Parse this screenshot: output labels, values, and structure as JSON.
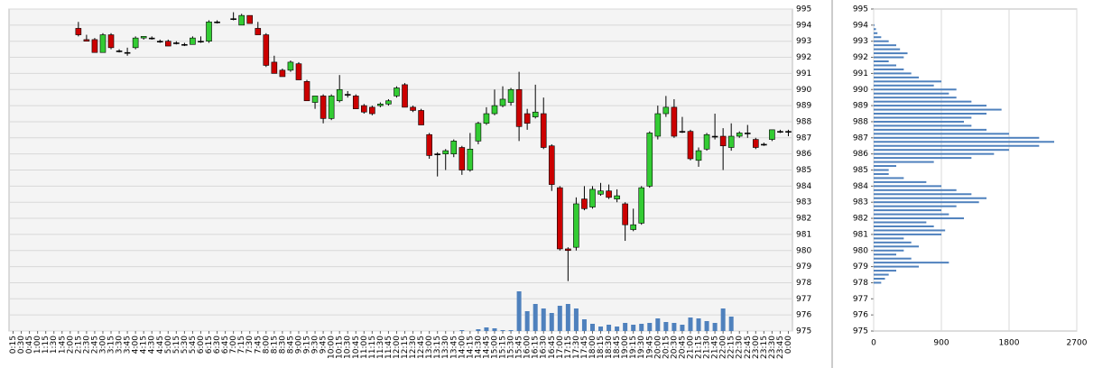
{
  "chart_data": [
    {
      "type": "candlestick",
      "x": [
        "0:15",
        "0:30",
        "0:45",
        "1:00",
        "1:15",
        "1:30",
        "1:45",
        "2:00",
        "2:15",
        "2:30",
        "2:45",
        "3:00",
        "3:15",
        "3:30",
        "3:45",
        "4:00",
        "4:15",
        "4:30",
        "4:45",
        "5:00",
        "5:15",
        "5:30",
        "5:45",
        "6:00",
        "6:15",
        "6:30",
        "6:45",
        "7:00",
        "7:15",
        "7:30",
        "7:45",
        "8:00",
        "8:15",
        "8:30",
        "8:45",
        "9:00",
        "9:15",
        "9:30",
        "9:45",
        "10:00",
        "10:15",
        "10:30",
        "10:45",
        "11:00",
        "11:15",
        "11:30",
        "11:45",
        "12:00",
        "12:15",
        "12:30",
        "12:45",
        "13:00",
        "13:15",
        "13:30",
        "13:45",
        "14:00",
        "14:15",
        "14:30",
        "14:45",
        "15:00",
        "15:15",
        "15:30",
        "15:45",
        "16:00",
        "16:15",
        "16:30",
        "16:45",
        "17:00",
        "17:15",
        "17:30",
        "17:45",
        "18:00",
        "18:15",
        "18:30",
        "18:45",
        "19:00",
        "19:15",
        "19:30",
        "19:45",
        "20:00",
        "20:15",
        "20:30",
        "20:45",
        "21:00",
        "21:15",
        "21:30",
        "21:45",
        "22:00",
        "22:15",
        "22:30",
        "22:45",
        "23:00",
        "23:15",
        "23:30",
        "23:45",
        "0:00"
      ],
      "open": [
        null,
        null,
        null,
        null,
        null,
        null,
        null,
        null,
        993.8,
        993.1,
        993.1,
        992.3,
        993.4,
        992.4,
        992.3,
        992.6,
        993.2,
        993.2,
        993.0,
        993.0,
        992.9,
        992.8,
        992.8,
        993.0,
        993.0,
        994.2,
        null,
        994.4,
        994.0,
        994.6,
        993.8,
        993.4,
        991.7,
        991.2,
        991.2,
        991.6,
        990.5,
        989.2,
        989.6,
        988.2,
        989.3,
        989.7,
        989.6,
        989.0,
        988.9,
        989.0,
        989.1,
        989.6,
        990.3,
        988.9,
        988.7,
        987.2,
        986.0,
        986.0,
        986.0,
        986.4,
        985.0,
        986.8,
        987.9,
        988.5,
        989.0,
        989.2,
        990.0,
        988.5,
        988.3,
        988.5,
        986.5,
        983.9,
        980.1,
        980.2,
        983.2,
        982.7,
        983.5,
        983.7,
        983.2,
        982.9,
        981.3,
        981.7,
        984.0,
        987.1,
        988.5,
        988.9,
        987.4,
        987.4,
        985.6,
        986.3,
        987.1,
        987.1,
        986.4,
        987.1,
        987.3,
        986.9,
        986.6,
        986.9,
        987.4,
        987.4
      ],
      "high": [
        null,
        null,
        null,
        null,
        null,
        null,
        null,
        null,
        994.2,
        993.4,
        993.2,
        993.5,
        993.5,
        992.5,
        992.6,
        993.3,
        993.3,
        993.3,
        993.1,
        993.1,
        993.0,
        992.9,
        993.3,
        993.3,
        994.3,
        994.3,
        null,
        994.8,
        994.7,
        994.6,
        994.2,
        993.5,
        992.1,
        991.3,
        991.8,
        991.7,
        990.6,
        989.6,
        989.7,
        989.7,
        990.9,
        989.9,
        989.7,
        989.1,
        989.0,
        989.2,
        989.4,
        990.2,
        990.4,
        989.0,
        988.8,
        987.3,
        986.1,
        986.3,
        986.9,
        986.5,
        987.3,
        988.0,
        988.9,
        990.0,
        990.2,
        990.1,
        991.1,
        988.8,
        990.3,
        989.5,
        986.6,
        984.0,
        980.2,
        983.3,
        984.0,
        984.0,
        984.2,
        984.1,
        983.8,
        983.0,
        982.6,
        984.0,
        987.4,
        989.0,
        989.6,
        989.4,
        988.3,
        987.5,
        986.4,
        987.3,
        988.5,
        987.6,
        987.9,
        987.4,
        987.8,
        987.0,
        986.7,
        987.5,
        987.5,
        987.5
      ],
      "low": [
        null,
        null,
        null,
        null,
        null,
        null,
        null,
        null,
        993.3,
        993.0,
        992.3,
        992.3,
        992.5,
        992.3,
        992.1,
        992.5,
        993.1,
        993.1,
        992.9,
        992.7,
        992.8,
        992.7,
        992.8,
        992.9,
        992.9,
        994.1,
        null,
        994.3,
        994.0,
        994.1,
        993.4,
        991.4,
        991.0,
        990.8,
        991.1,
        990.6,
        989.3,
        988.8,
        987.9,
        988.1,
        989.2,
        989.5,
        988.8,
        988.5,
        988.4,
        988.9,
        989.0,
        989.5,
        988.9,
        988.6,
        987.8,
        985.7,
        984.6,
        985.0,
        985.8,
        984.7,
        984.9,
        986.6,
        987.8,
        988.4,
        988.9,
        989.0,
        986.8,
        987.5,
        988.2,
        986.3,
        983.7,
        980.0,
        978.1,
        980.0,
        982.5,
        982.6,
        983.4,
        983.2,
        983.0,
        980.6,
        981.2,
        981.6,
        983.9,
        986.9,
        988.3,
        987.0,
        987.3,
        985.6,
        985.2,
        986.2,
        986.9,
        985.0,
        986.2,
        987.0,
        987.0,
        986.3,
        986.5,
        986.8,
        987.3,
        987.1
      ],
      "close": [
        null,
        null,
        null,
        null,
        null,
        null,
        null,
        null,
        993.4,
        993.0,
        992.3,
        993.4,
        992.6,
        992.4,
        992.3,
        993.2,
        993.3,
        993.2,
        993.0,
        992.7,
        992.9,
        992.8,
        993.2,
        993.0,
        994.2,
        994.2,
        null,
        994.4,
        994.6,
        994.1,
        993.4,
        991.5,
        991.0,
        990.8,
        991.7,
        990.6,
        989.3,
        989.6,
        988.2,
        989.6,
        990.0,
        989.7,
        988.8,
        988.6,
        988.5,
        989.1,
        989.3,
        990.1,
        988.9,
        988.7,
        987.8,
        985.9,
        986.0,
        986.2,
        986.8,
        985.0,
        986.3,
        987.9,
        988.5,
        989.0,
        989.4,
        990.0,
        987.7,
        987.9,
        988.6,
        986.4,
        984.1,
        980.1,
        980.0,
        982.9,
        982.6,
        983.8,
        983.7,
        983.3,
        983.4,
        981.6,
        981.6,
        983.9,
        987.3,
        988.5,
        988.9,
        987.1,
        987.4,
        985.7,
        986.2,
        987.2,
        987.1,
        986.5,
        987.1,
        987.3,
        987.3,
        986.4,
        986.6,
        987.5,
        987.4,
        987.4
      ],
      "volume": [
        null,
        null,
        null,
        null,
        null,
        null,
        null,
        null,
        null,
        null,
        null,
        null,
        null,
        null,
        null,
        null,
        null,
        null,
        null,
        null,
        null,
        null,
        null,
        null,
        null,
        null,
        null,
        null,
        null,
        null,
        null,
        null,
        null,
        null,
        null,
        null,
        null,
        null,
        null,
        null,
        null,
        null,
        null,
        null,
        null,
        null,
        null,
        null,
        null,
        null,
        null,
        null,
        null,
        null,
        null,
        1,
        null,
        2,
        4,
        3,
        1,
        1,
        44,
        22,
        30,
        25,
        20,
        28,
        30,
        25,
        13,
        8,
        5,
        7,
        5,
        9,
        7,
        8,
        9,
        14,
        10,
        9,
        7,
        15,
        14,
        11,
        9,
        25,
        16,
        null,
        null,
        null,
        null,
        null,
        null,
        null
      ],
      "up_color": "#33cc33",
      "down_color": "#cc0000",
      "volume_color": "#4f81bd",
      "ylim": [
        975,
        995
      ],
      "yticks": [
        975,
        976,
        977,
        978,
        979,
        980,
        981,
        982,
        983,
        984,
        985,
        986,
        987,
        988,
        989,
        990,
        991,
        992,
        993,
        994,
        995
      ],
      "grid": true
    },
    {
      "type": "barh",
      "y": [
        978,
        978.25,
        978.5,
        978.75,
        979,
        979.25,
        979.5,
        979.75,
        980,
        980.25,
        980.5,
        980.75,
        981,
        981.25,
        981.5,
        981.75,
        982,
        982.25,
        982.5,
        982.75,
        983,
        983.25,
        983.5,
        983.75,
        984,
        984.25,
        984.5,
        984.75,
        985,
        985.25,
        985.5,
        985.75,
        986,
        986.25,
        986.5,
        986.75,
        987,
        987.25,
        987.5,
        987.75,
        988,
        988.25,
        988.5,
        988.75,
        989,
        989.25,
        989.5,
        989.75,
        990,
        990.25,
        990.5,
        990.75,
        991,
        991.25,
        991.5,
        991.75,
        992,
        992.25,
        992.5,
        992.75,
        993,
        993.25,
        993.5,
        993.75,
        994
      ],
      "values": [
        100,
        150,
        200,
        300,
        600,
        1000,
        500,
        300,
        400,
        600,
        500,
        400,
        900,
        950,
        800,
        700,
        1200,
        1000,
        900,
        1100,
        1400,
        1500,
        1300,
        1100,
        900,
        700,
        400,
        200,
        200,
        300,
        800,
        1300,
        1600,
        1800,
        2200,
        2400,
        2200,
        1800,
        1500,
        1300,
        1200,
        1300,
        1500,
        1700,
        1500,
        1300,
        1100,
        1000,
        1100,
        800,
        900,
        600,
        500,
        400,
        300,
        200,
        400,
        450,
        350,
        300,
        200,
        100,
        50,
        30,
        10
      ],
      "color": "#4f81bd",
      "ylim": [
        975,
        995
      ],
      "yticks": [
        975,
        976,
        977,
        978,
        979,
        980,
        981,
        982,
        983,
        984,
        985,
        986,
        987,
        988,
        989,
        990,
        991,
        992,
        993,
        994,
        995
      ],
      "xlim": [
        0,
        2700
      ],
      "xticks": [
        0,
        900,
        1800,
        2700
      ],
      "grid": true
    }
  ]
}
